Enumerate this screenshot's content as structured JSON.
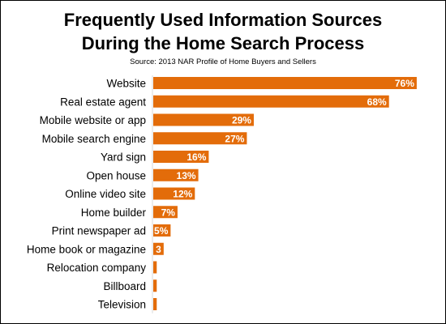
{
  "chart_data": {
    "type": "bar",
    "orientation": "horizontal",
    "title": "Frequently Used Information Sources During the Home Search Process",
    "title_lines": [
      "Frequently Used Information Sources",
      "During the Home Search Process"
    ],
    "subtitle": "Source: 2013 NAR Profile of Home Buyers and Sellers",
    "categories": [
      "Website",
      "Real estate agent",
      "Mobile website or app",
      "Mobile search engine",
      "Yard sign",
      "Open house",
      "Online video site",
      "Home builder",
      "Print newspaper ad",
      "Home book or magazine",
      "Relocation company",
      "Billboard",
      "Television"
    ],
    "values": [
      76,
      68,
      29,
      27,
      16,
      13,
      12,
      7,
      5,
      3,
      1,
      1,
      1
    ],
    "data_labels": [
      "76%",
      "68%",
      "29%",
      "27%",
      "16%",
      "13%",
      "12%",
      "7%",
      "5%",
      "3",
      "",
      "",
      ""
    ],
    "xlim": [
      0,
      80
    ],
    "unit": "%",
    "grid": false,
    "legend": "none",
    "bar_color": "#e36c0a"
  }
}
